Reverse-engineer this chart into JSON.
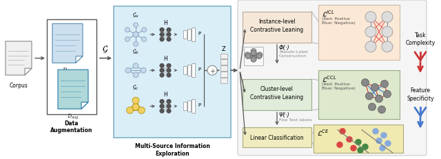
{
  "bg_color": "#ffffff",
  "corpus_label": "Corpus",
  "data_aug_label": "Data\nAugmentation",
  "multi_source_label": "Multi-Source Information\nExploration",
  "instance_box_label": "Instance-level\nContrastive Leaning",
  "cluster_box_label": "Cluster-level\nContrastive Leaning",
  "linear_box_label": "Linear Classification",
  "phi_label": "Φ(·)",
  "phi_sub": "Pseudo-Label\nConstruction",
  "psi_label": "Ψ(·)",
  "psi_sub": "Few Text labels",
  "task_complexity_label": "Task\nComplexity",
  "feature_specificity_label": "Feature\nSpecificity",
  "icl_label": "$\\mathcal{L}^{ICL}$",
  "ccl_label": "$\\mathcal{L}^{CCL}$",
  "ce_label": "$\\mathcal{L}^{CE}$",
  "instance_box_color": "#fde8d8",
  "cluster_box_color": "#e2ecda",
  "linear_box_color": "#f0ecc8",
  "ms_box_color": "#daeef7",
  "ms_box_edge": "#7fb3c8",
  "right_panel_color": "#f5f5f5",
  "arrow_color": "#555555",
  "Ga_label": "$\\mathcal{G}_a$",
  "Gb_label": "$\\mathcal{G}_b$",
  "Gc_label": "$\\mathcal{G}_c$",
  "G_script": "$\\mathcal{G}$"
}
